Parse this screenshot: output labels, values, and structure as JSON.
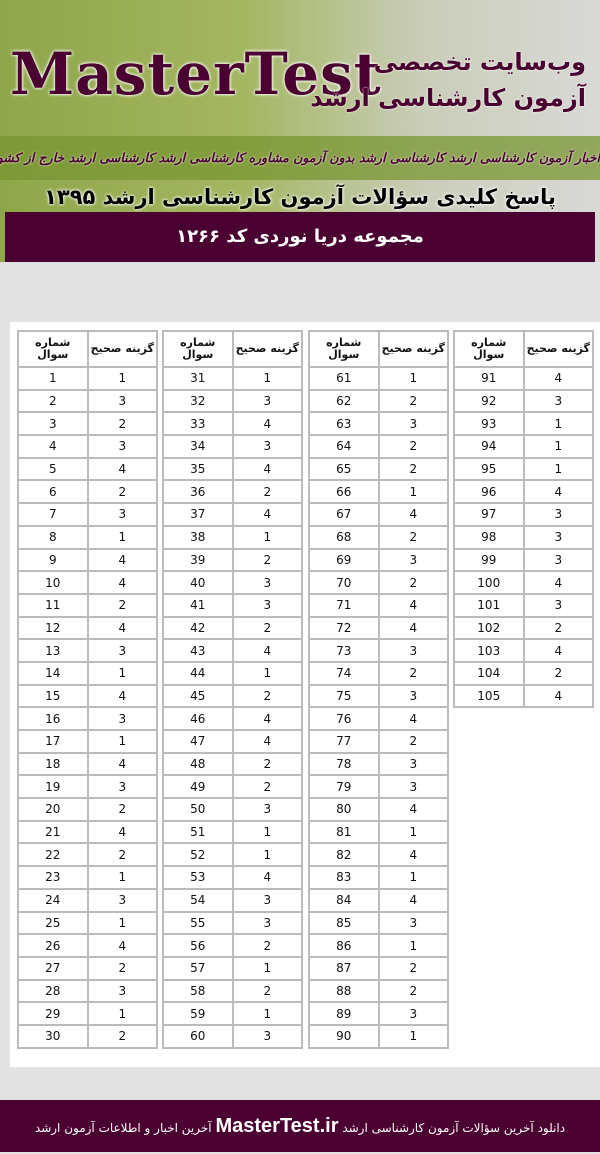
{
  "banner": {
    "logo": "MasterTest",
    "tagline1": "وب‌سایت تخصصی",
    "tagline2": "آزمون کارشناسی ارشد",
    "news": "اخبار آزمون کارشناسی ارشد  کارشناسی ارشد بدون آزمون  مشاوره کارشناسی ارشد  کارشناسی ارشد خارج از کشور",
    "subtitle": "پاسخ کلیدی سؤالات آزمون کارشناسی ارشد ۱۳۹۵",
    "set_title": "مجموعه دریا نوردی کد ۱۲۶۶"
  },
  "colors": {
    "maroon": "#4a0030",
    "green": "#8fa64a"
  },
  "table": {
    "col_question": "شماره سوال",
    "col_answer": "گزینه صحیح",
    "groups": [
      {
        "start": 1,
        "answers": [
          1,
          3,
          2,
          3,
          4,
          2,
          3,
          1,
          4,
          4,
          2,
          4,
          3,
          1,
          4,
          3,
          1,
          4,
          3,
          2,
          4,
          2,
          1,
          3,
          1,
          4,
          2,
          3,
          1,
          2
        ]
      },
      {
        "start": 31,
        "answers": [
          1,
          3,
          4,
          3,
          4,
          2,
          4,
          1,
          2,
          3,
          3,
          2,
          4,
          1,
          2,
          4,
          4,
          2,
          2,
          3,
          1,
          1,
          4,
          3,
          3,
          2,
          1,
          2,
          1,
          3
        ]
      },
      {
        "start": 61,
        "answers": [
          1,
          2,
          3,
          2,
          2,
          1,
          4,
          2,
          3,
          2,
          4,
          4,
          3,
          2,
          3,
          4,
          2,
          3,
          3,
          4,
          1,
          4,
          1,
          4,
          3,
          1,
          2,
          2,
          3,
          1
        ]
      },
      {
        "start": 91,
        "answers": [
          4,
          3,
          1,
          1,
          1,
          4,
          3,
          3,
          3,
          4,
          3,
          2,
          4,
          2,
          4
        ]
      }
    ]
  },
  "footer": {
    "before": "دانلود آخرین سؤالات آزمون کارشناسی ارشد",
    "site": "MasterTest.ir",
    "after": "آخرین اخبار و اطلاعات آزمون ارشد"
  }
}
